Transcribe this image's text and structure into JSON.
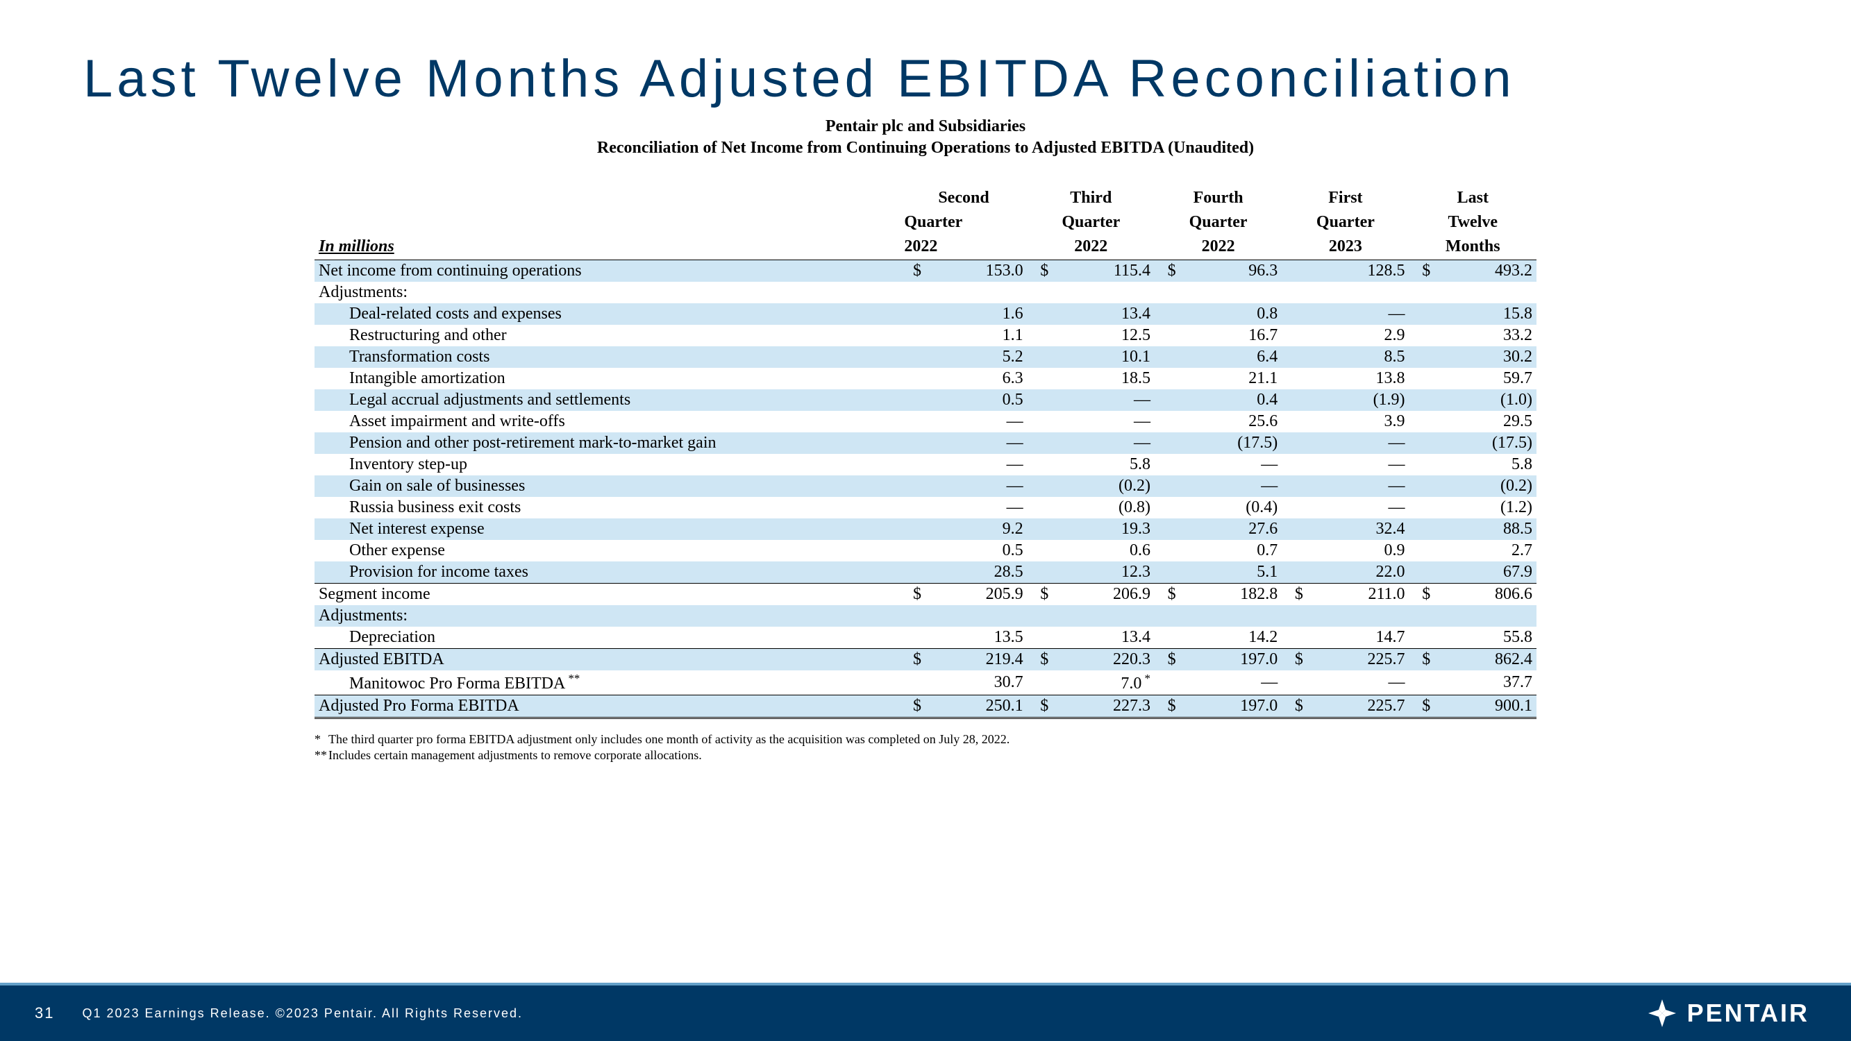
{
  "title": "Last Twelve Months Adjusted EBITDA Reconciliation",
  "subtitle1": "Pentair plc and Subsidiaries",
  "subtitle2": "Reconciliation of Net Income from Continuing Operations to Adjusted EBITDA (Unaudited)",
  "units_label": "In millions",
  "columns": [
    {
      "l1": "Second",
      "l2": "Quarter",
      "l3": "2022"
    },
    {
      "l1": "Third",
      "l2": "Quarter",
      "l3": "2022"
    },
    {
      "l1": "Fourth",
      "l2": "Quarter",
      "l3": "2022"
    },
    {
      "l1": "First",
      "l2": "Quarter",
      "l3": "2023"
    },
    {
      "l1": "Last",
      "l2": "Twelve",
      "l3": "Months"
    }
  ],
  "rows": [
    {
      "label": "Net income from continuing operations",
      "v": [
        "153.0",
        "115.4",
        "96.3",
        "128.5",
        "493.2"
      ],
      "cur": [
        "$",
        "$",
        "",
        "",
        "$",
        ""
      ],
      "curTrail": [
        "$",
        "$",
        "$",
        "",
        "$",
        ""
      ],
      "shade": true,
      "cls": ""
    },
    {
      "label": "Adjustments:",
      "v": [
        "",
        "",
        "",
        "",
        ""
      ],
      "shade": false
    },
    {
      "label": "Deal-related costs and expenses",
      "v": [
        "1.6",
        "13.4",
        "0.8",
        "—",
        "15.8"
      ],
      "shade": true,
      "indent": 1
    },
    {
      "label": "Restructuring and other",
      "v": [
        "1.1",
        "12.5",
        "16.7",
        "2.9",
        "33.2"
      ],
      "shade": false,
      "indent": 1
    },
    {
      "label": "Transformation costs",
      "v": [
        "5.2",
        "10.1",
        "6.4",
        "8.5",
        "30.2"
      ],
      "shade": true,
      "indent": 1
    },
    {
      "label": "Intangible amortization",
      "v": [
        "6.3",
        "18.5",
        "21.1",
        "13.8",
        "59.7"
      ],
      "shade": false,
      "indent": 1
    },
    {
      "label": "Legal accrual adjustments and settlements",
      "v": [
        "0.5",
        "—",
        "0.4",
        "(1.9)",
        "(1.0)"
      ],
      "shade": true,
      "indent": 1
    },
    {
      "label": "Asset impairment and write-offs",
      "v": [
        "—",
        "—",
        "25.6",
        "3.9",
        "29.5"
      ],
      "shade": false,
      "indent": 1
    },
    {
      "label": "Pension and other post-retirement mark-to-market gain",
      "v": [
        "—",
        "—",
        "(17.5)",
        "—",
        "(17.5)"
      ],
      "shade": true,
      "indent": 1
    },
    {
      "label": "Inventory step-up",
      "v": [
        "—",
        "5.8",
        "—",
        "—",
        "5.8"
      ],
      "shade": false,
      "indent": 1
    },
    {
      "label": "Gain on sale of businesses",
      "v": [
        "—",
        "(0.2)",
        "—",
        "—",
        "(0.2)"
      ],
      "shade": true,
      "indent": 1
    },
    {
      "label": "Russia business exit costs",
      "v": [
        "—",
        "(0.8)",
        "(0.4)",
        "—",
        "(1.2)"
      ],
      "shade": false,
      "indent": 1
    },
    {
      "label": "Net interest expense",
      "v": [
        "9.2",
        "19.3",
        "27.6",
        "32.4",
        "88.5"
      ],
      "shade": true,
      "indent": 1
    },
    {
      "label": "Other expense",
      "v": [
        "0.5",
        "0.6",
        "0.7",
        "0.9",
        "2.7"
      ],
      "shade": false,
      "indent": 1
    },
    {
      "label": "Provision for income taxes",
      "v": [
        "28.5",
        "12.3",
        "5.1",
        "22.0",
        "67.9"
      ],
      "shade": true,
      "indent": 1
    }
  ],
  "segment": {
    "label": "Segment income",
    "v": [
      "205.9",
      "206.9",
      "182.8",
      "211.0",
      "806.6"
    ],
    "cur": true
  },
  "adjustments2_label": "Adjustments:",
  "depreciation": {
    "label": "Depreciation",
    "v": [
      "13.5",
      "13.4",
      "14.2",
      "14.7",
      "55.8"
    ]
  },
  "adj_ebitda": {
    "label": "Adjusted EBITDA",
    "v": [
      "219.4",
      "220.3",
      "197.0",
      "225.7",
      "862.4"
    ],
    "cur": true
  },
  "manitowoc": {
    "label": "Manitowoc Pro Forma EBITDA",
    "sup": "**",
    "v": [
      "30.7",
      "7.0",
      "—",
      "—",
      "37.7"
    ],
    "ast2": "*"
  },
  "adj_pf": {
    "label": "Adjusted Pro Forma EBITDA",
    "v": [
      "250.1",
      "227.3",
      "197.0",
      "225.7",
      "900.1"
    ],
    "cur": true
  },
  "footnote1_mark": "*",
  "footnote1": "The third quarter pro forma EBITDA adjustment only includes one month of activity as the acquisition was completed on July 28, 2022.",
  "footnote2_mark": "**",
  "footnote2": "Includes certain management adjustments to remove corporate allocations.",
  "page_number": "31",
  "footer_text": "Q1 2023 Earnings Release. ©2023 Pentair. All Rights Reserved.",
  "brand": "PENTAIR",
  "colors": {
    "navy": "#003865",
    "rowShade": "#cfe6f4",
    "accent": "#64a0c8"
  }
}
